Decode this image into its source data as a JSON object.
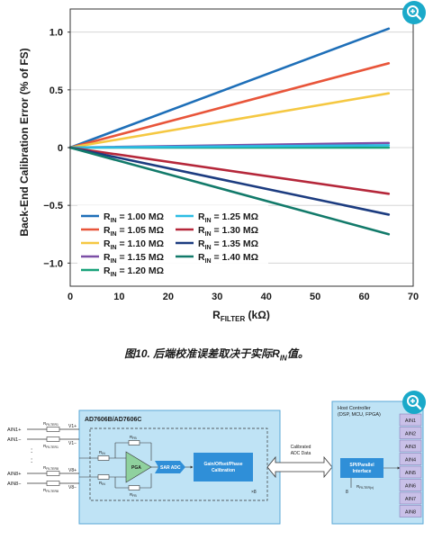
{
  "chart_data": {
    "type": "line",
    "title": "",
    "xlabel_main": "R",
    "xlabel_sub": "FILTER",
    "xlabel_unit": " (kΩ)",
    "ylabel": "Back-End Calibration Error (% of FS)",
    "xlim": [
      0,
      70
    ],
    "ylim": [
      -1.2,
      1.2
    ],
    "x_ticks": [
      "0",
      "10",
      "20",
      "30",
      "40",
      "50",
      "60",
      "70"
    ],
    "y_ticks": [
      "1.0",
      "0.5",
      "0",
      "−0.5",
      "−1.0"
    ],
    "y_tick_values": [
      1.0,
      0.5,
      0,
      -0.5,
      -1.0
    ],
    "x_tick_values": [
      0,
      10,
      20,
      30,
      40,
      50,
      60,
      70
    ],
    "grid": "horizontal",
    "legend_placement": "bottom-left",
    "series": [
      {
        "name": "R",
        "sub": "IN",
        "value_text": " = 1.00 MΩ",
        "color": "#1e6fb8",
        "x": [
          0,
          65
        ],
        "y": [
          0,
          1.03
        ]
      },
      {
        "name": "R",
        "sub": "IN",
        "value_text": " = 1.05 MΩ",
        "color": "#e8553a",
        "x": [
          0,
          65
        ],
        "y": [
          0,
          0.73
        ]
      },
      {
        "name": "R",
        "sub": "IN",
        "value_text": " = 1.10 MΩ",
        "color": "#f5c842",
        "x": [
          0,
          65
        ],
        "y": [
          0,
          0.47
        ]
      },
      {
        "name": "R",
        "sub": "IN",
        "value_text": " = 1.15 MΩ",
        "color": "#7b4fa6",
        "x": [
          0,
          65
        ],
        "y": [
          0,
          0.04
        ]
      },
      {
        "name": "R",
        "sub": "IN",
        "value_text": " = 1.20 MΩ",
        "color": "#19a27a",
        "x": [
          0,
          65
        ],
        "y": [
          0,
          0.0
        ]
      },
      {
        "name": "R",
        "sub": "IN",
        "value_text": " = 1.25 MΩ",
        "color": "#2bbde3",
        "x": [
          0,
          65
        ],
        "y": [
          0,
          0.02
        ]
      },
      {
        "name": "R",
        "sub": "IN",
        "value_text": " = 1.30 MΩ",
        "color": "#b5273a",
        "x": [
          0,
          65
        ],
        "y": [
          0,
          -0.4
        ]
      },
      {
        "name": "R",
        "sub": "IN",
        "value_text": " = 1.35 MΩ",
        "color": "#1c3c80",
        "x": [
          0,
          65
        ],
        "y": [
          0,
          -0.58
        ]
      },
      {
        "name": "R",
        "sub": "IN",
        "value_text": " = 1.40 MΩ",
        "color": "#127a6a",
        "x": [
          0,
          65
        ],
        "y": [
          0,
          -0.75
        ]
      }
    ]
  },
  "caption": {
    "text": "图10. 后端校准误差取决于实际R",
    "sub": "IN",
    "suffix": "值。"
  },
  "diagram": {
    "chip_title": "AD7606B/AD7606C",
    "inputs": [
      "AIN1+",
      "AIN1−",
      "AIN8+",
      "AIN8−"
    ],
    "dots": [
      ":",
      ":"
    ],
    "rfilter_labels": [
      "R",
      "R",
      "R",
      "R"
    ],
    "rfilter_subs": [
      "FILTER1",
      "FILTER1",
      "FILTER8",
      "FILTER8"
    ],
    "pin_labels": [
      "V1+",
      "V1−",
      "V8+",
      "V8−"
    ],
    "rfb_main": "R",
    "rfb_sub": "FB",
    "rin_main": "R",
    "rin_sub": "IN",
    "pga_label": "PGA",
    "adc_label": "SAR ADC",
    "cal_lines": [
      "Gain/Offset/Phase",
      "Calibration"
    ],
    "times8": "×8",
    "arrow_lines": [
      "Calibrated",
      "ADC Data"
    ],
    "host_title_lines": [
      "Host Controller",
      "(DSP, MCU, FPGA)"
    ],
    "spi_lines": [
      "SPI/Parallel",
      "Interface"
    ],
    "host_r_main": "R",
    "host_r_sub": "FILTER(x)",
    "host_count": "8",
    "ain_regs": [
      "AIN1",
      "AIN2",
      "AIN3",
      "AIN4",
      "AIN5",
      "AIN6",
      "AIN7",
      "AIN8"
    ]
  },
  "colors": {
    "zoom": "#1aa9c9",
    "chip_bg": "#bfe3f5",
    "block_blue": "#2f8fd8",
    "pga_green": "#8fd19e",
    "reg_purple": "#c9c0e8"
  },
  "icons": [
    "zoom-in-icon"
  ]
}
